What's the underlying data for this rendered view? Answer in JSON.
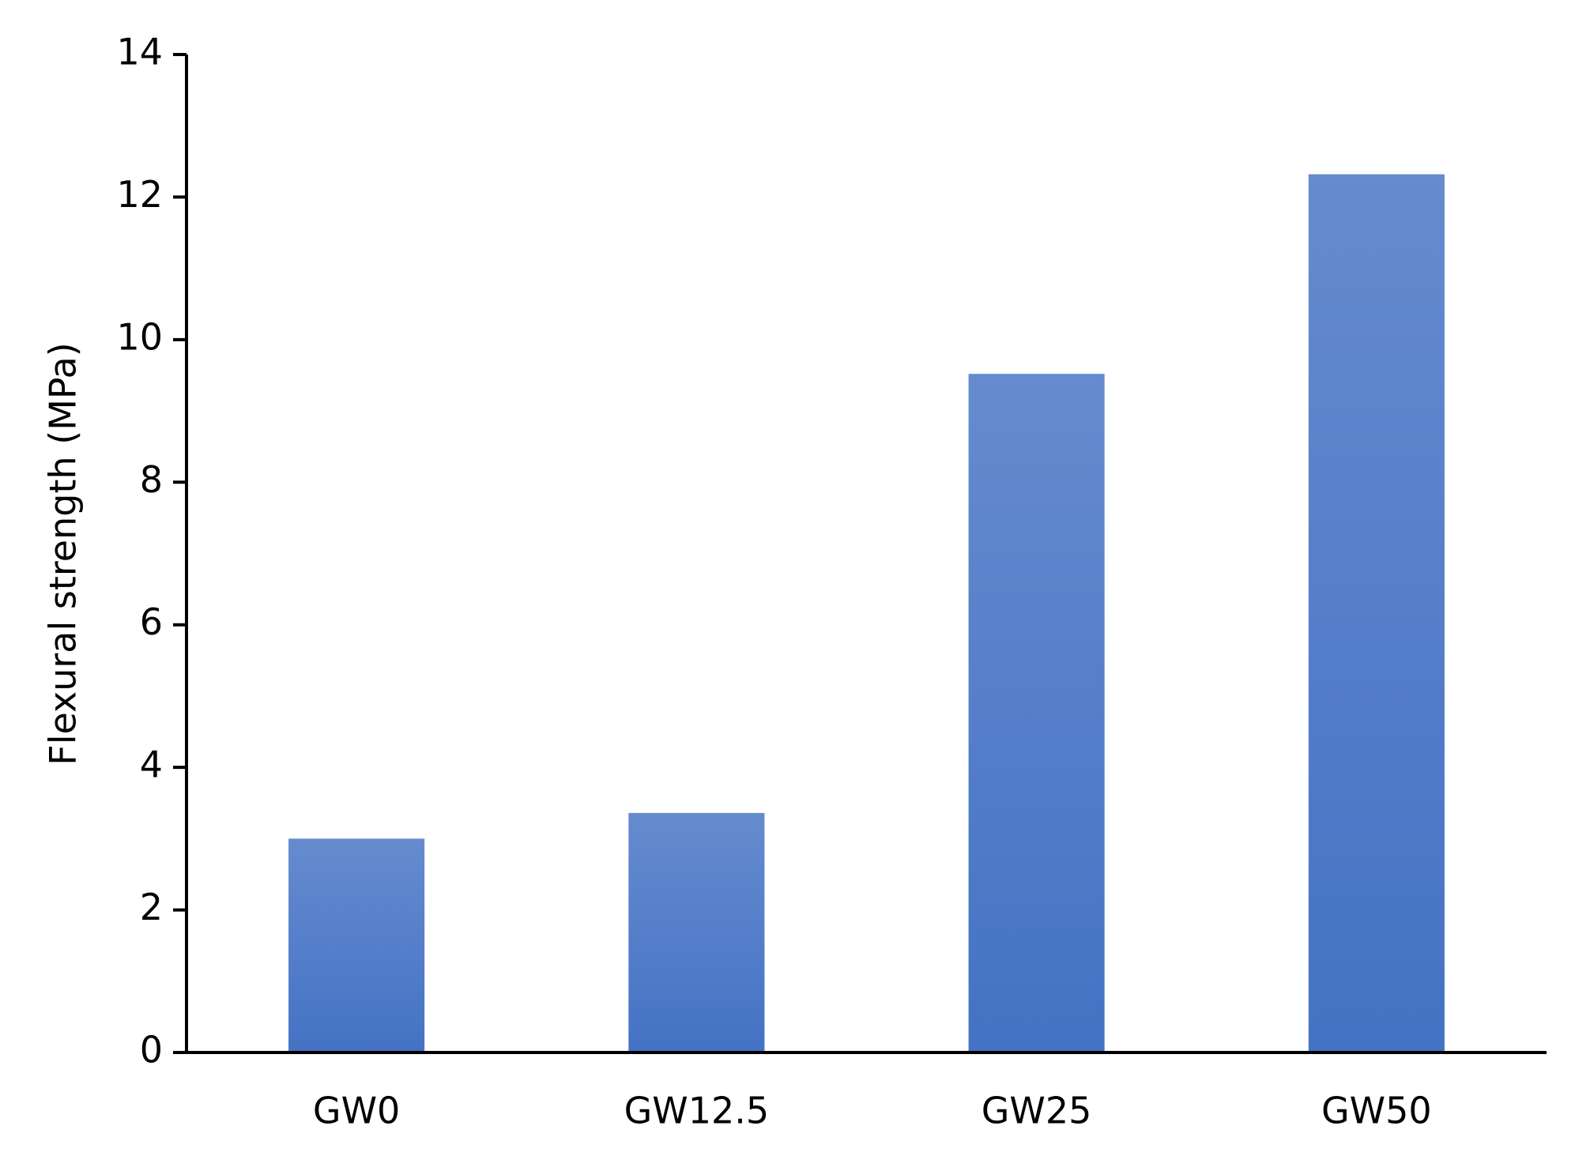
{
  "chart_data": {
    "type": "bar",
    "y_label": "Flexural strength (MPa)",
    "categories": [
      "GW0",
      "GW12.5",
      "GW25",
      "GW50"
    ],
    "values": [
      3.0,
      3.36,
      9.52,
      12.32
    ],
    "color": "#4472c4",
    "ylim": [
      0,
      14
    ],
    "yticks": [
      0,
      2,
      4,
      6,
      8,
      10,
      12,
      14
    ],
    "grid": false
  }
}
